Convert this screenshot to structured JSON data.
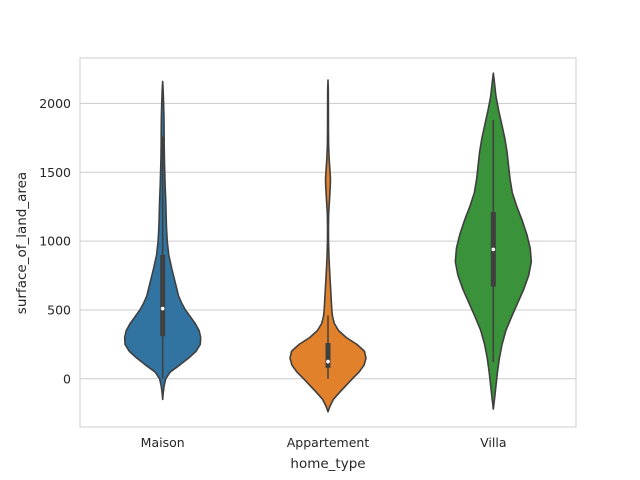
{
  "chart_data": {
    "type": "violin",
    "title": "",
    "xlabel": "home_type",
    "ylabel": "surface_of_land_area",
    "ylim": [
      -350,
      2330
    ],
    "yticks": [
      0,
      500,
      1000,
      1500,
      2000
    ],
    "grid": true,
    "categories": [
      "Maison",
      "Appartement",
      "Villa"
    ],
    "colors": [
      "#3274a1",
      "#e1812c",
      "#3a923a"
    ],
    "box_color": "#3f3f3f",
    "median_color": "#ffffff",
    "series": [
      {
        "category": "Maison",
        "min": 0,
        "q1": 310,
        "median": 510,
        "q3": 900,
        "whisker_high": 1760,
        "density": [
          [
            -150,
            0
          ],
          [
            -100,
            0.015
          ],
          [
            -50,
            0.04
          ],
          [
            0,
            0.08
          ],
          [
            50,
            0.2
          ],
          [
            100,
            0.45
          ],
          [
            150,
            0.68
          ],
          [
            200,
            0.88
          ],
          [
            250,
            0.99
          ],
          [
            300,
            1.0
          ],
          [
            350,
            0.96
          ],
          [
            400,
            0.86
          ],
          [
            450,
            0.73
          ],
          [
            500,
            0.6
          ],
          [
            550,
            0.5
          ],
          [
            600,
            0.42
          ],
          [
            700,
            0.33
          ],
          [
            800,
            0.24
          ],
          [
            900,
            0.16
          ],
          [
            1000,
            0.12
          ],
          [
            1100,
            0.1
          ],
          [
            1200,
            0.09
          ],
          [
            1300,
            0.08
          ],
          [
            1400,
            0.065
          ],
          [
            1500,
            0.055
          ],
          [
            1600,
            0.045
          ],
          [
            1700,
            0.04
          ],
          [
            1800,
            0.038
          ],
          [
            1900,
            0.034
          ],
          [
            2000,
            0.025
          ],
          [
            2100,
            0.012
          ],
          [
            2160,
            0
          ]
        ]
      },
      {
        "category": "Appartement",
        "min": 0,
        "q1": 80,
        "median": 125,
        "q3": 260,
        "whisker_high": 460,
        "density": [
          [
            -240,
            0
          ],
          [
            -200,
            0.05
          ],
          [
            -150,
            0.14
          ],
          [
            -100,
            0.3
          ],
          [
            -50,
            0.47
          ],
          [
            0,
            0.64
          ],
          [
            50,
            0.82
          ],
          [
            100,
            0.95
          ],
          [
            150,
            1.0
          ],
          [
            200,
            0.96
          ],
          [
            250,
            0.76
          ],
          [
            300,
            0.48
          ],
          [
            350,
            0.28
          ],
          [
            400,
            0.17
          ],
          [
            450,
            0.12
          ],
          [
            500,
            0.1
          ],
          [
            600,
            0.08
          ],
          [
            700,
            0.06
          ],
          [
            800,
            0.04
          ],
          [
            900,
            0.024
          ],
          [
            1000,
            0.014
          ],
          [
            1100,
            0.012
          ],
          [
            1200,
            0.018
          ],
          [
            1300,
            0.04
          ],
          [
            1400,
            0.06
          ],
          [
            1450,
            0.065
          ],
          [
            1500,
            0.055
          ],
          [
            1600,
            0.03
          ],
          [
            1700,
            0.016
          ],
          [
            1800,
            0.012
          ],
          [
            1900,
            0.011
          ],
          [
            2000,
            0.01
          ],
          [
            2100,
            0.008
          ],
          [
            2170,
            0
          ]
        ]
      },
      {
        "category": "Villa",
        "min": 120,
        "q1": 670,
        "median": 940,
        "q3": 1210,
        "whisker_high": 1880,
        "density": [
          [
            -220,
            0
          ],
          [
            -150,
            0.03
          ],
          [
            -50,
            0.07
          ],
          [
            50,
            0.11
          ],
          [
            150,
            0.16
          ],
          [
            250,
            0.23
          ],
          [
            350,
            0.33
          ],
          [
            450,
            0.48
          ],
          [
            550,
            0.64
          ],
          [
            650,
            0.8
          ],
          [
            750,
            0.93
          ],
          [
            850,
            1.0
          ],
          [
            950,
            0.97
          ],
          [
            1050,
            0.88
          ],
          [
            1150,
            0.76
          ],
          [
            1250,
            0.62
          ],
          [
            1350,
            0.5
          ],
          [
            1450,
            0.44
          ],
          [
            1550,
            0.4
          ],
          [
            1650,
            0.36
          ],
          [
            1750,
            0.3
          ],
          [
            1850,
            0.22
          ],
          [
            1950,
            0.14
          ],
          [
            2050,
            0.07
          ],
          [
            2150,
            0.03
          ],
          [
            2220,
            0
          ]
        ]
      }
    ]
  }
}
